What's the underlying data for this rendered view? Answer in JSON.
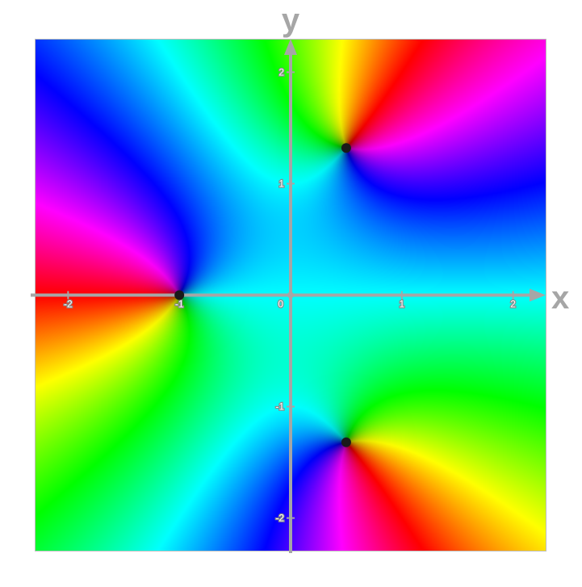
{
  "chart_data": {
    "type": "heatmap",
    "title": "",
    "xlabel": "x",
    "ylabel": "y",
    "xlim": [
      -2.3,
      2.3
    ],
    "ylim": [
      -2.3,
      2.3
    ],
    "grid": false,
    "legend": "none",
    "coloring": "argument",
    "x_ticks": [
      {
        "value": -2,
        "label": "-2"
      },
      {
        "value": -1,
        "label": "-1"
      },
      {
        "value": 0,
        "label": "0"
      },
      {
        "value": 1,
        "label": "1"
      },
      {
        "value": 2,
        "label": "2"
      }
    ],
    "y_ticks": [
      {
        "value": 2,
        "label": "2"
      },
      {
        "value": 1,
        "label": "1"
      },
      {
        "value": -1,
        "label": "-1"
      },
      {
        "value": -2,
        "label": "-2"
      }
    ],
    "zeros": [
      {
        "x": -1.0,
        "y": 0.0
      },
      {
        "x": 0.5,
        "y": 1.32
      },
      {
        "x": 0.5,
        "y": -1.32
      }
    ],
    "colors": {
      "axis": "#a6a6a6",
      "frame": "#bdbdbd",
      "zero_marker": "#1a1a1a"
    }
  }
}
